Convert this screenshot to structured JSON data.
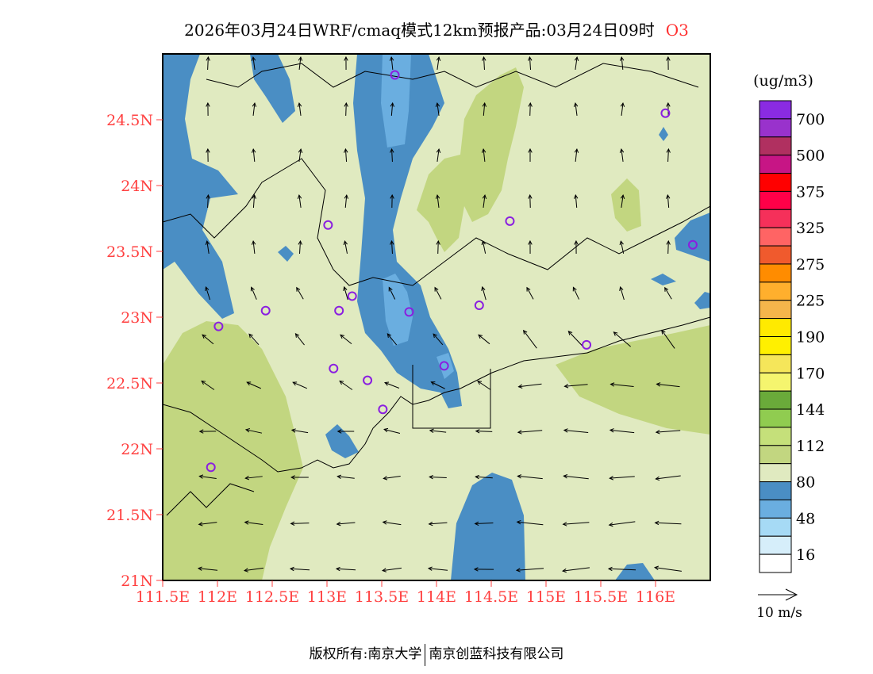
{
  "title": {
    "text": "2026年03月24日WRF/cmaq模式12km预报产品:03月24日09时",
    "pollutant": "O3"
  },
  "footer": {
    "left": "版权所有:南京大学",
    "right": "南京创蓝科技有限公司"
  },
  "chart_data": {
    "type": "heatmap",
    "title": "2026年03月24日WRF/cmaq模式12km预报产品:03月24日09时 O3",
    "xlim": [
      111.5,
      116.5
    ],
    "ylim": [
      21,
      25
    ],
    "x_ticks": [
      111.5,
      112,
      112.5,
      113,
      113.5,
      114,
      114.5,
      115,
      115.5,
      116
    ],
    "x_tick_labels": [
      "111.5E",
      "112E",
      "112.5E",
      "113E",
      "113.5E",
      "114E",
      "114.5E",
      "115E",
      "115.5E",
      "116E"
    ],
    "y_ticks": [
      21,
      21.5,
      22,
      22.5,
      23,
      23.5,
      24,
      24.5
    ],
    "y_tick_labels": [
      "21N",
      "21.5N",
      "22N",
      "22.5N",
      "23N",
      "23.5N",
      "24N",
      "24.5N"
    ],
    "colorbar": {
      "unit": "(ug/m3)",
      "labels": [
        "700",
        "500",
        "375",
        "325",
        "275",
        "225",
        "190",
        "170",
        "144",
        "112",
        "80",
        "48",
        "16"
      ],
      "colors": [
        "#8a2be2",
        "#9932cc",
        "#b03060",
        "#c71585",
        "#ff0000",
        "#ff0048",
        "#f5305a",
        "#ff6464",
        "#f05a2d",
        "#ff8c00",
        "#ffaf2d",
        "#f5b54b",
        "#ffea00",
        "#fff000",
        "#f5e65a",
        "#f5f56e",
        "#6aaa3a",
        "#90cc50",
        "#c5e07a",
        "#c2d680",
        "#e0eac0",
        "#4a8ec4",
        "#6aaee0",
        "#a6daf5",
        "#d6eefa",
        "#ffffff"
      ]
    },
    "wind_legend": "10 m/s",
    "field_levels_present": [
      "48-64",
      "64-80",
      "80-96",
      "96-112"
    ],
    "stations": [
      {
        "lon": 113.62,
        "lat": 24.84
      },
      {
        "lon": 116.09,
        "lat": 24.55
      },
      {
        "lon": 113.01,
        "lat": 23.7
      },
      {
        "lon": 114.67,
        "lat": 23.73
      },
      {
        "lon": 116.34,
        "lat": 23.55
      },
      {
        "lon": 112.44,
        "lat": 23.05
      },
      {
        "lon": 113.11,
        "lat": 23.05
      },
      {
        "lon": 113.23,
        "lat": 23.16
      },
      {
        "lon": 113.75,
        "lat": 23.04
      },
      {
        "lon": 114.39,
        "lat": 23.09
      },
      {
        "lon": 112.01,
        "lat": 22.93
      },
      {
        "lon": 115.37,
        "lat": 22.79
      },
      {
        "lon": 113.06,
        "lat": 22.61
      },
      {
        "lon": 113.37,
        "lat": 22.52
      },
      {
        "lon": 114.07,
        "lat": 22.63
      },
      {
        "lon": 113.51,
        "lat": 22.3
      },
      {
        "lon": 111.94,
        "lat": 21.86
      }
    ]
  }
}
